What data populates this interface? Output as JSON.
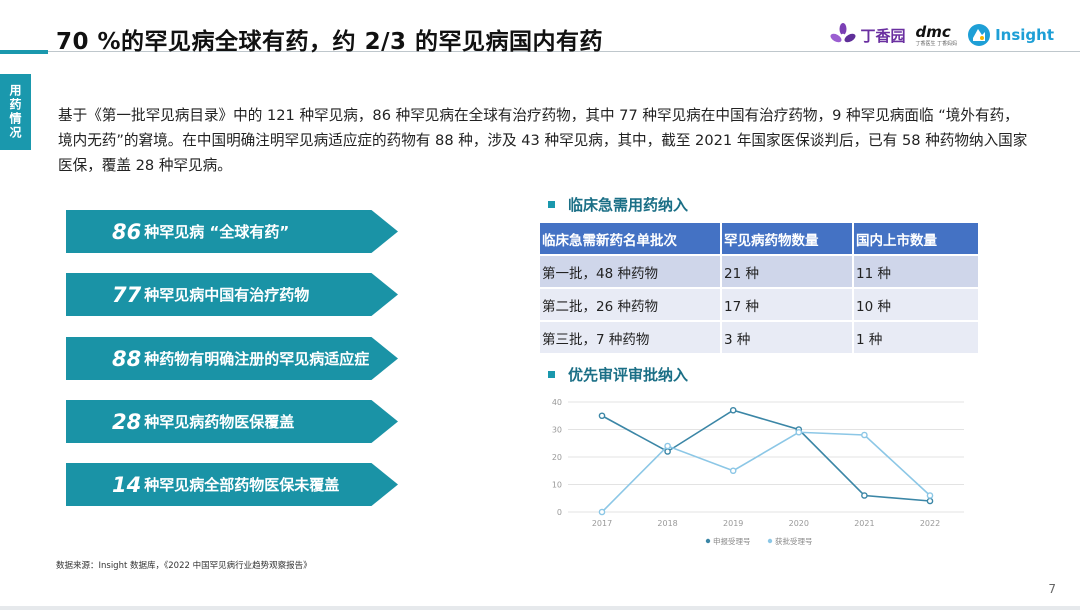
{
  "title": "70 %的罕见病全球有药，约 2/3 的罕见病国内有药",
  "logos": {
    "dxy": "丁香园",
    "dmc": "dmc",
    "dmc_sub": "丁香医生 丁香妈妈",
    "insight": "Insight"
  },
  "side_tab": "用药情况",
  "intro": "基于《第一批罕见病目录》中的 121 种罕见病，86 种罕见病在全球有治疗药物，其中 77 种罕见病在中国有治疗药物，9 种罕见病面临 “境外有药，境内无药”的窘境。在中国明确注明罕见病适应症的药物有 88 种，涉及 43 种罕见病，其中，截至 2021 年国家医保谈判后，已有 58 种药物纳入国家医保，覆盖 28 种罕见病。",
  "banners": [
    {
      "num": "86",
      "text": "种罕见病 “全球有药”"
    },
    {
      "num": "77",
      "text": "种罕见病中国有治疗药物"
    },
    {
      "num": "88",
      "text": "种药物有明确注册的罕见病适应症"
    },
    {
      "num": "28",
      "text": "种罕见病药物医保覆盖"
    },
    {
      "num": "14",
      "text": "种罕见病全部药物医保未覆盖"
    }
  ],
  "table_section": {
    "heading": "临床急需用药纳入",
    "headers": [
      "临床急需新药名单批次",
      "罕见病药物数量",
      "国内上市数量"
    ],
    "rows": [
      [
        "第一批，48 种药物",
        "21 种",
        "11 种"
      ],
      [
        "第二批，26 种药物",
        "17 种",
        "10 种"
      ],
      [
        "第三批，7 种药物",
        "3 种",
        "1 种"
      ]
    ]
  },
  "chart_section": {
    "heading": "优先审评审批纳入"
  },
  "chart_data": {
    "type": "line",
    "categories": [
      "2017",
      "2018",
      "2019",
      "2020",
      "2021",
      "2022"
    ],
    "series": [
      {
        "name": "申报受理号",
        "color": "#3b86a6",
        "values": [
          35,
          22,
          37,
          30,
          6,
          4
        ]
      },
      {
        "name": "获批受理号",
        "color": "#8cc7e6",
        "values": [
          0,
          24,
          15,
          29,
          28,
          6
        ]
      }
    ],
    "yticks": [
      "0",
      "10",
      "20",
      "30",
      "40"
    ],
    "ylim": [
      0,
      40
    ],
    "grid": true,
    "legend": "bottom"
  },
  "source": "数据来源：Insight 数据库，《2022 中国罕见病行业趋势观察报告》",
  "page_number": "7",
  "colors": {
    "accent": "#1a98ad",
    "banner": "#1a93a6",
    "table_header": "#4472c4",
    "section_heading": "#1b6f86"
  }
}
